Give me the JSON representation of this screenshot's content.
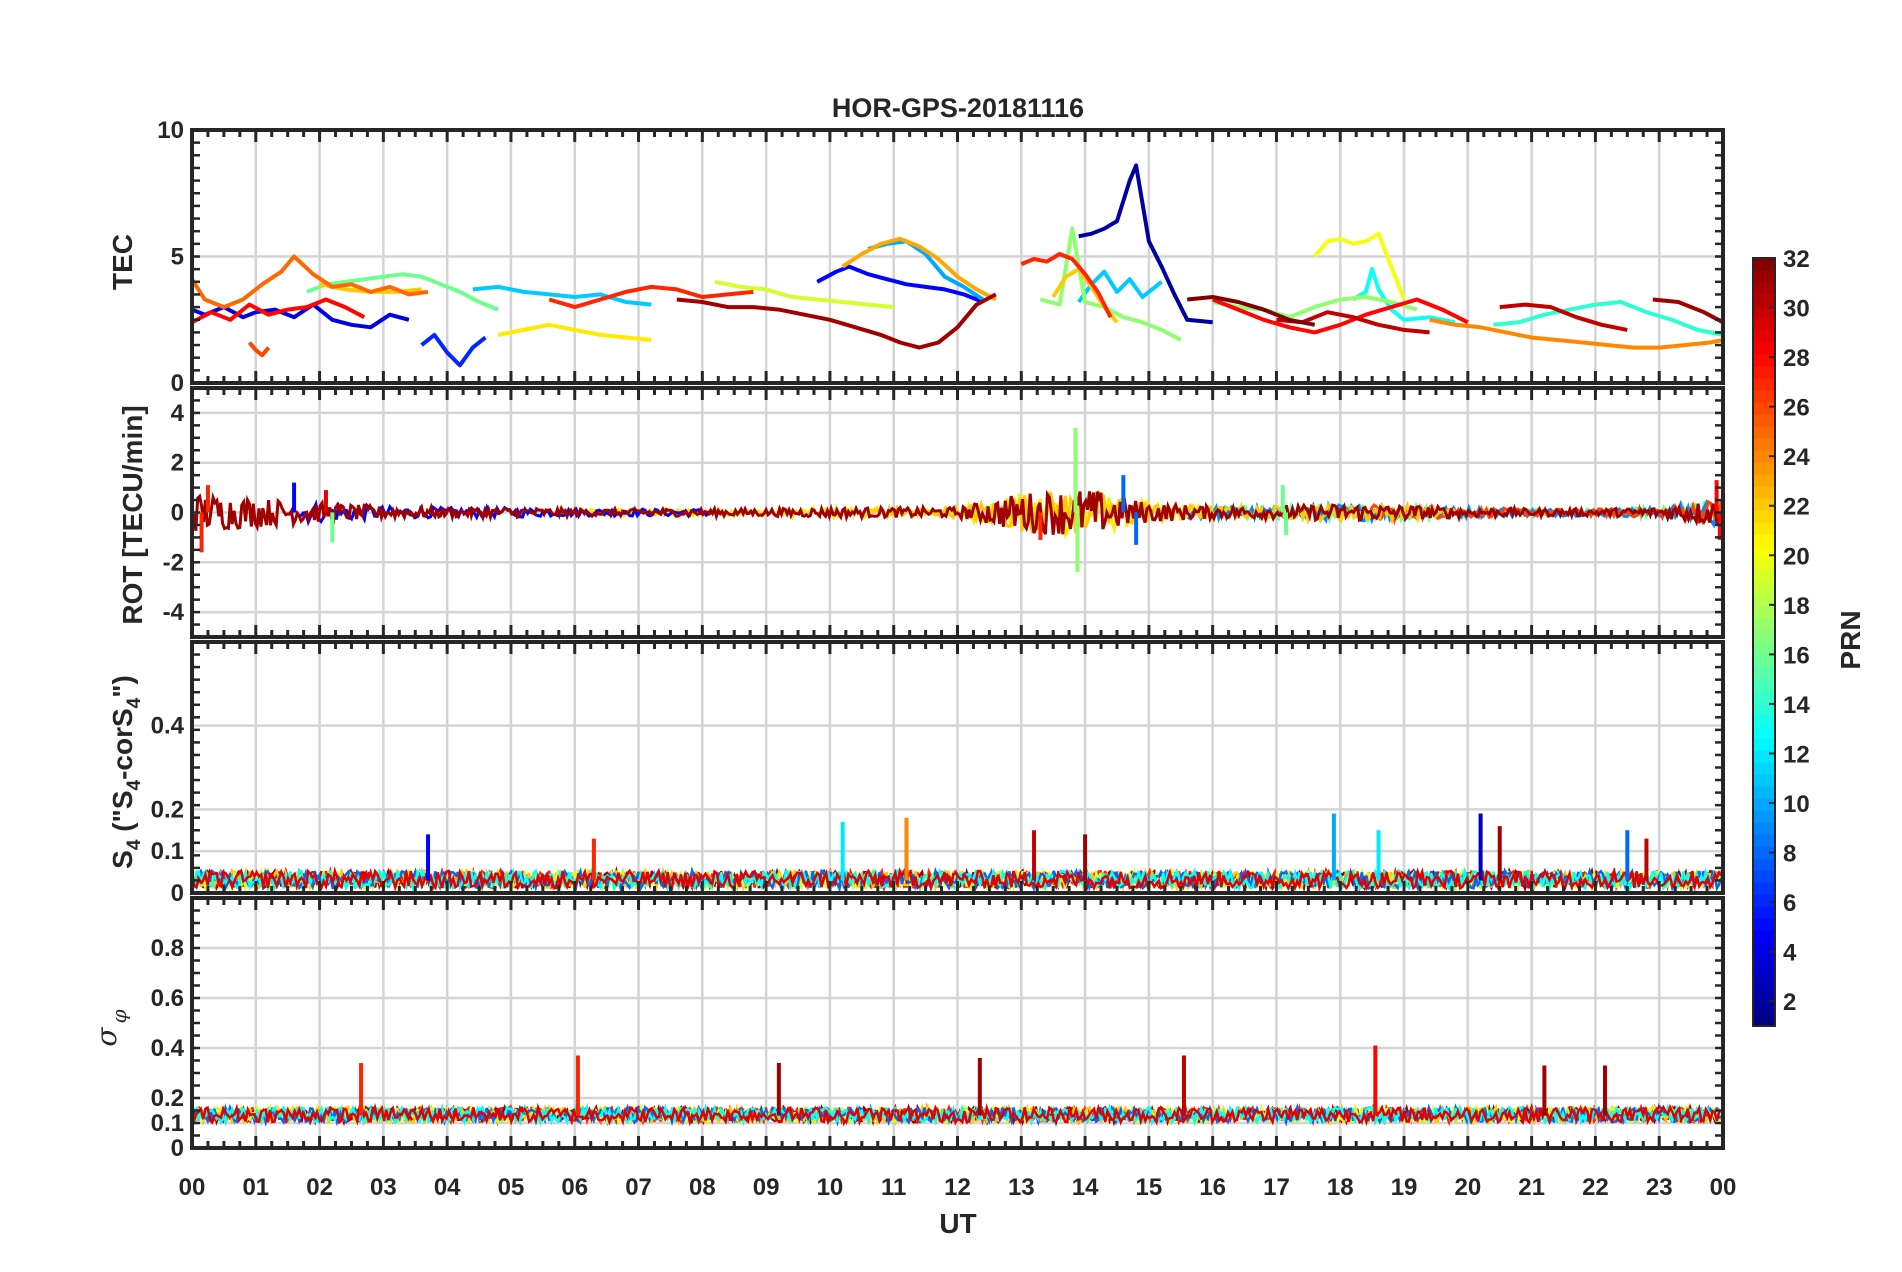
{
  "chart_data": {
    "type": "line",
    "title": "HOR-GPS-20181116",
    "xlabel": "UT",
    "x_tick_labels": [
      "00",
      "01",
      "02",
      "03",
      "04",
      "05",
      "06",
      "07",
      "08",
      "09",
      "10",
      "11",
      "12",
      "13",
      "14",
      "15",
      "16",
      "17",
      "18",
      "19",
      "20",
      "21",
      "22",
      "23",
      "00"
    ],
    "xlim_hours": [
      0,
      24
    ],
    "grid": true,
    "colorbar": {
      "label": "PRN",
      "range": [
        1,
        32
      ],
      "ticks": [
        "2",
        "4",
        "6",
        "8",
        "10",
        "12",
        "14",
        "16",
        "18",
        "20",
        "22",
        "24",
        "26",
        "28",
        "30",
        "32"
      ],
      "colormap": "jet"
    },
    "panels": [
      {
        "ylabel": "TEC",
        "ylim": [
          0,
          10
        ],
        "yticks": [
          "0",
          "5",
          "10"
        ],
        "series": [
          {
            "prn": 2,
            "x": [
              13.9,
              14.1,
              14.3,
              14.5,
              14.6,
              14.7,
              14.8,
              14.9,
              15.0,
              15.2,
              15.4,
              15.6,
              16.0
            ],
            "y": [
              5.8,
              5.9,
              6.1,
              6.4,
              7.2,
              8.0,
              8.6,
              7.1,
              5.6,
              4.6,
              3.5,
              2.5,
              2.4
            ]
          },
          {
            "prn": 4,
            "x": [
              0.0,
              0.2,
              0.5,
              0.8,
              1.0,
              1.3,
              1.6,
              1.9,
              2.2,
              2.5,
              2.8,
              3.1,
              3.4
            ],
            "y": [
              2.9,
              2.7,
              3.0,
              2.6,
              2.8,
              2.9,
              2.6,
              3.1,
              2.5,
              2.3,
              2.2,
              2.7,
              2.5
            ]
          },
          {
            "prn": 6,
            "x": [
              3.6,
              3.8,
              4.0,
              4.2,
              4.4,
              4.6
            ],
            "y": [
              1.5,
              1.9,
              1.2,
              0.7,
              1.4,
              1.8
            ]
          },
          {
            "prn": 5,
            "x": [
              9.8,
              10.1,
              10.3,
              10.6,
              10.9,
              11.2,
              11.5,
              11.8,
              12.1,
              12.4
            ],
            "y": [
              4.0,
              4.4,
              4.6,
              4.3,
              4.1,
              3.9,
              3.8,
              3.7,
              3.5,
              3.2
            ]
          },
          {
            "prn": 10,
            "x": [
              10.6,
              10.9,
              11.2,
              11.5,
              11.8,
              12.1,
              12.4
            ],
            "y": [
              5.3,
              5.5,
              5.6,
              5.1,
              4.2,
              3.8,
              3.3
            ]
          },
          {
            "prn": 11,
            "x": [
              4.4,
              4.8,
              5.2,
              5.6,
              6.0,
              6.4,
              6.8,
              7.2
            ],
            "y": [
              3.7,
              3.8,
              3.6,
              3.5,
              3.4,
              3.5,
              3.2,
              3.1
            ]
          },
          {
            "prn": 11,
            "x": [
              13.9,
              14.1,
              14.3,
              14.5,
              14.7,
              14.9,
              15.2
            ],
            "y": [
              3.2,
              3.9,
              4.4,
              3.6,
              4.1,
              3.4,
              4.0
            ]
          },
          {
            "prn": 13,
            "x": [
              18.2,
              18.4,
              18.5,
              18.6,
              18.8,
              19.0,
              19.4,
              19.8
            ],
            "y": [
              3.3,
              3.6,
              4.5,
              3.7,
              2.9,
              2.5,
              2.6,
              2.4
            ]
          },
          {
            "prn": 14,
            "x": [
              20.4,
              20.8,
              21.2,
              21.6,
              22.0,
              22.4,
              22.8,
              23.2,
              23.6,
              24.0
            ],
            "y": [
              2.3,
              2.4,
              2.7,
              2.9,
              3.1,
              3.2,
              2.8,
              2.5,
              2.1,
              1.9
            ]
          },
          {
            "prn": 16,
            "x": [
              1.8,
              2.1,
              2.4,
              2.7,
              3.0,
              3.3,
              3.6,
              3.9,
              4.2,
              4.5,
              4.8
            ],
            "y": [
              3.6,
              3.9,
              4.0,
              4.1,
              4.2,
              4.3,
              4.2,
              3.9,
              3.6,
              3.2,
              2.9
            ]
          },
          {
            "prn": 17,
            "x": [
              13.3,
              13.6,
              13.8,
              14.0,
              14.3,
              14.6,
              14.9,
              15.2,
              15.5
            ],
            "y": [
              3.3,
              3.1,
              6.1,
              3.2,
              3.0,
              2.6,
              2.4,
              2.1,
              1.7
            ]
          },
          {
            "prn": 17,
            "x": [
              16.0,
              16.4,
              16.8,
              17.2,
              17.6,
              18.0,
              18.4,
              18.8,
              19.2
            ],
            "y": [
              3.2,
              3.0,
              2.9,
              2.6,
              3.0,
              3.3,
              3.4,
              3.2,
              2.9
            ]
          },
          {
            "prn": 19,
            "x": [
              8.2,
              8.6,
              9.0,
              9.4,
              9.8,
              10.2,
              10.6,
              11.0
            ],
            "y": [
              4.0,
              3.8,
              3.7,
              3.4,
              3.3,
              3.2,
              3.1,
              3.0
            ]
          },
          {
            "prn": 20,
            "x": [
              17.6,
              17.8,
              18.0,
              18.2,
              18.4,
              18.6,
              18.8,
              19.0
            ],
            "y": [
              5.0,
              5.6,
              5.7,
              5.5,
              5.6,
              5.9,
              4.6,
              3.3
            ]
          },
          {
            "prn": 21,
            "x": [
              4.8,
              5.2,
              5.6,
              6.0,
              6.4,
              6.8,
              7.2
            ],
            "y": [
              1.9,
              2.1,
              2.3,
              2.1,
              1.9,
              1.8,
              1.7
            ]
          },
          {
            "prn": 22,
            "x": [
              2.0,
              2.4,
              2.8,
              3.2,
              3.6
            ],
            "y": [
              3.9,
              3.7,
              3.6,
              3.6,
              3.7
            ]
          },
          {
            "prn": 22,
            "x": [
              13.5,
              13.7,
              13.9,
              14.1,
              14.3,
              14.5
            ],
            "y": [
              3.4,
              4.2,
              4.5,
              3.8,
              3.0,
              2.4
            ]
          },
          {
            "prn": 23,
            "x": [
              10.2,
              10.5,
              10.8,
              11.1,
              11.4,
              11.7,
              12.0,
              12.3,
              12.6
            ],
            "y": [
              4.6,
              5.1,
              5.5,
              5.7,
              5.4,
              4.9,
              4.2,
              3.7,
              3.3
            ]
          },
          {
            "prn": 24,
            "x": [
              19.4,
              19.8,
              20.2,
              20.6,
              21.0,
              21.4,
              21.8,
              22.2,
              22.6,
              23.0,
              23.4,
              23.8,
              24.0
            ],
            "y": [
              2.5,
              2.3,
              2.2,
              2.0,
              1.8,
              1.7,
              1.6,
              1.5,
              1.4,
              1.4,
              1.5,
              1.6,
              1.7
            ]
          },
          {
            "prn": 25,
            "x": [
              0.0,
              0.2,
              0.5,
              0.8,
              1.1,
              1.4,
              1.6,
              1.9,
              2.2,
              2.5,
              2.8,
              3.1,
              3.4,
              3.7
            ],
            "y": [
              4.1,
              3.3,
              3.0,
              3.3,
              3.9,
              4.4,
              5.0,
              4.3,
              3.8,
              3.9,
              3.6,
              3.8,
              3.5,
              3.6
            ]
          },
          {
            "prn": 26,
            "x": [
              0.9,
              1.0,
              1.1,
              1.2
            ],
            "y": [
              1.6,
              1.3,
              1.1,
              1.4
            ]
          },
          {
            "prn": 27,
            "x": [
              13.0,
              13.2,
              13.4,
              13.6,
              13.8,
              14.0,
              14.2,
              14.4
            ],
            "y": [
              4.7,
              4.9,
              4.8,
              5.1,
              4.9,
              4.3,
              3.6,
              2.6
            ]
          },
          {
            "prn": 27,
            "x": [
              5.6,
              6.0,
              6.4,
              6.8,
              7.2,
              7.6,
              8.0,
              8.4,
              8.8
            ],
            "y": [
              3.3,
              3.0,
              3.3,
              3.6,
              3.8,
              3.7,
              3.4,
              3.5,
              3.6
            ]
          },
          {
            "prn": 28,
            "x": [
              0.0,
              0.3,
              0.6,
              0.9,
              1.2,
              1.5,
              1.8,
              2.1,
              2.4,
              2.7
            ],
            "y": [
              2.4,
              2.8,
              2.5,
              3.1,
              2.7,
              2.9,
              3.0,
              3.3,
              3.0,
              2.6
            ]
          },
          {
            "prn": 28,
            "x": [
              16.0,
              16.4,
              16.8,
              17.2,
              17.6,
              18.0,
              18.4,
              18.8,
              19.2,
              19.6,
              20.0
            ],
            "y": [
              3.3,
              2.9,
              2.5,
              2.2,
              2.0,
              2.3,
              2.7,
              3.0,
              3.3,
              2.9,
              2.4
            ]
          },
          {
            "prn": 30,
            "x": [
              20.5,
              20.9,
              21.3,
              21.7,
              22.1,
              22.5
            ],
            "y": [
              3.0,
              3.1,
              3.0,
              2.6,
              2.3,
              2.1
            ]
          },
          {
            "prn": 30,
            "x": [
              17.0,
              17.4,
              17.8,
              18.2,
              18.6,
              19.0,
              19.4
            ],
            "y": [
              2.5,
              2.4,
              2.8,
              2.6,
              2.3,
              2.1,
              2.0
            ]
          },
          {
            "prn": 31,
            "x": [
              7.6,
              8.0,
              8.4,
              8.8,
              9.2,
              9.6,
              10.0,
              10.4,
              10.8,
              11.1,
              11.4,
              11.7,
              12.0,
              12.3,
              12.6
            ],
            "y": [
              3.3,
              3.2,
              3.0,
              3.0,
              2.9,
              2.7,
              2.5,
              2.2,
              1.9,
              1.6,
              1.4,
              1.6,
              2.2,
              3.1,
              3.5
            ]
          },
          {
            "prn": 31,
            "x": [
              22.9,
              23.3,
              23.7,
              24.0
            ],
            "y": [
              3.3,
              3.2,
              2.8,
              2.4
            ]
          },
          {
            "prn": 32,
            "x": [
              15.6,
              16.0,
              16.4,
              16.8,
              17.2,
              17.6
            ],
            "y": [
              3.3,
              3.4,
              3.2,
              2.9,
              2.5,
              2.3
            ]
          }
        ]
      },
      {
        "ylabel": "ROT [TECU/min]",
        "ylim": [
          -5,
          5
        ],
        "yticks": [
          "-4",
          "-2",
          "0",
          "2",
          "4"
        ],
        "spikes": [
          {
            "prn": 27,
            "x": 0.15,
            "y": -1.6
          },
          {
            "prn": 27,
            "x": 0.25,
            "y": 1.1
          },
          {
            "prn": 5,
            "x": 1.6,
            "y": 1.2
          },
          {
            "prn": 29,
            "x": 2.1,
            "y": 0.9
          },
          {
            "prn": 16,
            "x": 2.2,
            "y": -1.2
          },
          {
            "prn": 27,
            "x": 13.3,
            "y": -1.1
          },
          {
            "prn": 17,
            "x": 13.85,
            "y": 3.4
          },
          {
            "prn": 17,
            "x": 13.88,
            "y": -2.4
          },
          {
            "prn": 8,
            "x": 14.6,
            "y": 1.5
          },
          {
            "prn": 8,
            "x": 14.8,
            "y": -1.3
          },
          {
            "prn": 16,
            "x": 17.1,
            "y": 1.1
          },
          {
            "prn": 16,
            "x": 17.15,
            "y": -0.9
          },
          {
            "prn": 28,
            "x": 23.9,
            "y": 1.3
          },
          {
            "prn": 28,
            "x": 23.95,
            "y": -1.1
          }
        ],
        "envelope": {
          "x": [
            0,
            1,
            2,
            3,
            4,
            5,
            6,
            7,
            8,
            9,
            10,
            11,
            12,
            13,
            14,
            15,
            16,
            17,
            18,
            19,
            20,
            21,
            22,
            23,
            24
          ],
          "y": [
            0.8,
            0.6,
            0.4,
            0.25,
            0.2,
            0.2,
            0.15,
            0.15,
            0.15,
            0.15,
            0.2,
            0.2,
            0.2,
            0.8,
            1.0,
            0.4,
            0.25,
            0.25,
            0.35,
            0.3,
            0.2,
            0.15,
            0.15,
            0.2,
            0.6
          ]
        }
      },
      {
        "ylabel": "S4 (\"S4-corS4\")",
        "ylim": [
          0,
          0.6
        ],
        "yticks": [
          "0",
          "0.1",
          "0.2",
          "0.4"
        ],
        "baseline": 0.03,
        "spikes": [
          {
            "prn": 5,
            "x": 3.7,
            "y": 0.14
          },
          {
            "prn": 27,
            "x": 6.3,
            "y": 0.13
          },
          {
            "prn": 12,
            "x": 10.2,
            "y": 0.17
          },
          {
            "prn": 24,
            "x": 11.2,
            "y": 0.18
          },
          {
            "prn": 30,
            "x": 13.2,
            "y": 0.15
          },
          {
            "prn": 31,
            "x": 14.0,
            "y": 0.14
          },
          {
            "prn": 10,
            "x": 17.9,
            "y": 0.19
          },
          {
            "prn": 12,
            "x": 18.6,
            "y": 0.15
          },
          {
            "prn": 3,
            "x": 20.2,
            "y": 0.19
          },
          {
            "prn": 31,
            "x": 20.5,
            "y": 0.16
          },
          {
            "prn": 8,
            "x": 22.5,
            "y": 0.15
          },
          {
            "prn": 30,
            "x": 22.8,
            "y": 0.13
          }
        ]
      },
      {
        "ylabel": "σφ",
        "ylim": [
          0,
          1.0
        ],
        "yticks": [
          "0",
          "0.1",
          "0.2",
          "0.4",
          "0.6",
          "0.8"
        ],
        "baseline": 0.13,
        "spikes": [
          {
            "prn": 27,
            "x": 2.65,
            "y": 0.34
          },
          {
            "prn": 27,
            "x": 6.05,
            "y": 0.37
          },
          {
            "prn": 31,
            "x": 9.2,
            "y": 0.34
          },
          {
            "prn": 31,
            "x": 12.35,
            "y": 0.36
          },
          {
            "prn": 30,
            "x": 15.55,
            "y": 0.37
          },
          {
            "prn": 28,
            "x": 18.55,
            "y": 0.41
          },
          {
            "prn": 31,
            "x": 21.2,
            "y": 0.33
          },
          {
            "prn": 31,
            "x": 22.15,
            "y": 0.33
          }
        ]
      }
    ]
  }
}
